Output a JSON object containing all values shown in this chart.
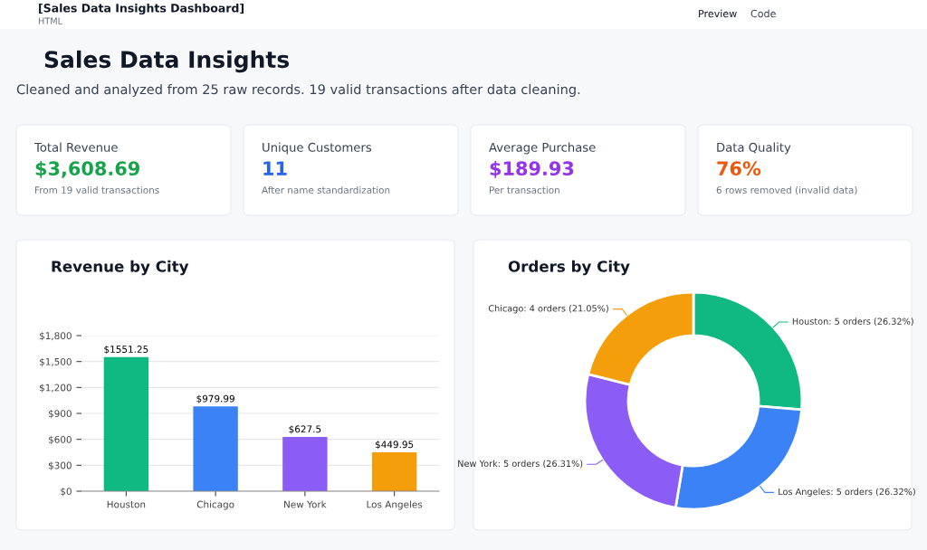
{
  "chart_data": [
    {
      "type": "other",
      "title": "Sales Data Insights",
      "subtitle": "Cleaned and analyzed from 25 raw records. 19 valid transactions after data cleaning.",
      "annotations": [
        "[Sales Data Insights Dashboard]",
        "HTML",
        "Preview",
        "Code",
        "Total Revenue",
        "$3,608.69",
        "From 19 valid transactions",
        "Unique Customers",
        "11",
        "After name standardization",
        "Average Purchase",
        "$189.93",
        "Per transaction",
        "Data Quality",
        "76%",
        "6 rows removed (invalid data)"
      ]
    },
    {
      "type": "bar",
      "title": "Revenue by City",
      "categories": [
        "Houston",
        "Chicago",
        "New York",
        "Los Angeles"
      ],
      "values": [
        1551.25,
        979.99,
        627.5,
        449.95
      ],
      "colors": [
        "#10b981",
        "#3b82f6",
        "#8b5cf6",
        "#f59e0b"
      ],
      "value_labels": [
        "$1551.25",
        "$979.99",
        "$627.5",
        "$449.95"
      ],
      "ylim": [
        0,
        1800
      ],
      "yticks": [
        {
          "value": 0,
          "label": "$0"
        },
        {
          "value": 300,
          "label": "$300"
        },
        {
          "value": 600,
          "label": "$600"
        },
        {
          "value": 900,
          "label": "$900"
        },
        {
          "value": 1200,
          "label": "$1,200"
        },
        {
          "value": 1500,
          "label": "$1,500"
        },
        {
          "value": 1800,
          "label": "$1,800"
        }
      ],
      "grid": "y",
      "legend": false
    },
    {
      "type": "donut",
      "title": "Orders by City",
      "categories": [
        "Houston",
        "Los Angeles",
        "New York",
        "Chicago"
      ],
      "values": [
        5,
        5,
        5,
        4
      ],
      "colors": [
        "#10b981",
        "#3b82f6",
        "#8b5cf6",
        "#f59e0b"
      ],
      "value_labels": [
        "5 orders (26.32%)",
        "5 orders (26.32%)",
        "5 orders (26.31%)",
        "4 orders (21.05%)"
      ],
      "legend": false
    }
  ]
}
